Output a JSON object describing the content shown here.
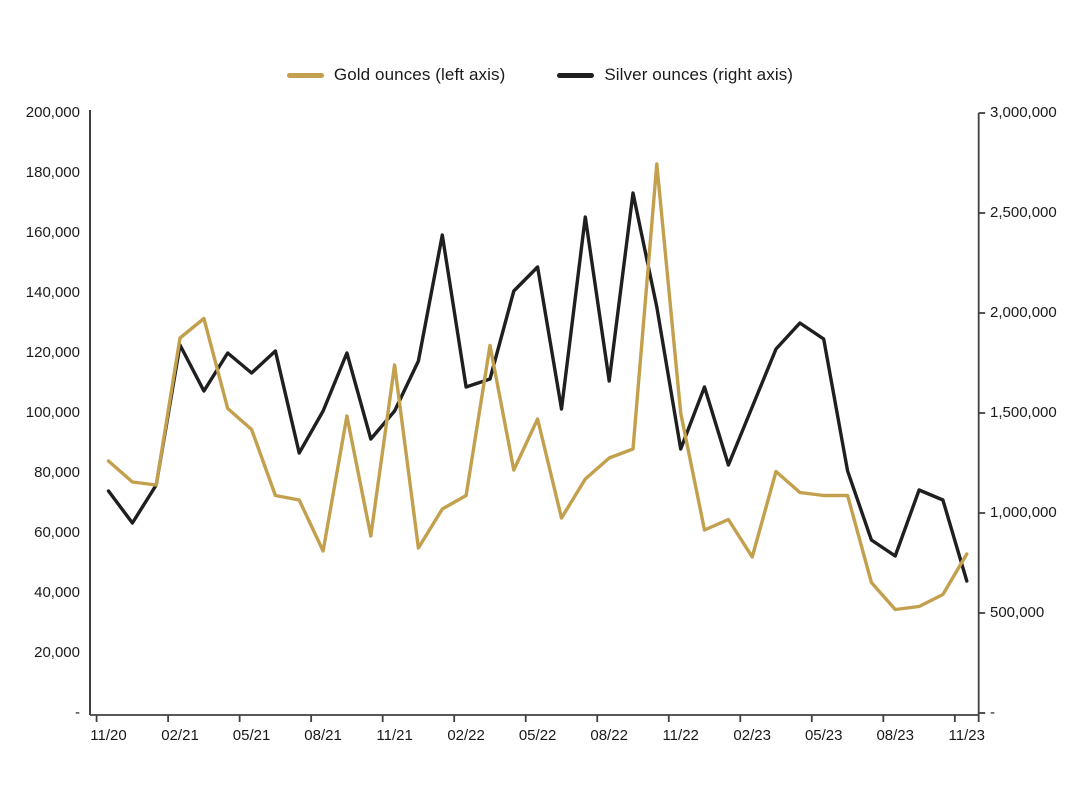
{
  "legend": [
    {
      "label": "Gold ounces (left axis)",
      "color": "#c2a04d"
    },
    {
      "label": "Silver ounces (right axis)",
      "color": "#1f1f1f"
    }
  ],
  "axis_color": "#404040",
  "text_color": "#1a1a1a",
  "chart_data": {
    "type": "line",
    "x": [
      "11/20",
      "12/20",
      "01/21",
      "02/21",
      "03/21",
      "04/21",
      "05/21",
      "06/21",
      "07/21",
      "08/21",
      "09/21",
      "10/21",
      "11/21",
      "12/21",
      "01/22",
      "02/22",
      "03/22",
      "04/22",
      "05/22",
      "06/22",
      "07/22",
      "08/22",
      "09/22",
      "10/22",
      "11/22",
      "12/22",
      "01/23",
      "02/23",
      "03/23",
      "04/23",
      "05/23",
      "06/23",
      "07/23",
      "08/23",
      "09/23",
      "10/23",
      "11/23"
    ],
    "x_tick_labels": [
      "11/20",
      "02/21",
      "05/21",
      "08/21",
      "11/21",
      "02/22",
      "05/22",
      "08/22",
      "11/22",
      "02/23",
      "05/23",
      "08/23",
      "11/23"
    ],
    "series": [
      {
        "name": "Gold ounces (left axis)",
        "axis": "left",
        "color": "#c2a04d",
        "values": [
          84000,
          77000,
          76000,
          125000,
          131500,
          101500,
          94500,
          72500,
          71000,
          54000,
          99000,
          59000,
          116000,
          55000,
          68000,
          72500,
          122500,
          81000,
          98000,
          65000,
          78000,
          85000,
          88000,
          183000,
          100000,
          61000,
          64500,
          52000,
          80500,
          73500,
          72500,
          72500,
          43500,
          34500,
          35500,
          39500,
          53000
        ]
      },
      {
        "name": "Silver ounces (right axis)",
        "axis": "right",
        "color": "#1f1f1f",
        "values": [
          1110000,
          950000,
          1140000,
          1840000,
          1610000,
          1800000,
          1700000,
          1810000,
          1300000,
          1510000,
          1800000,
          1370000,
          1510000,
          1760000,
          2390000,
          1630000,
          1670000,
          2110000,
          2230000,
          1520000,
          2480000,
          1660000,
          2600000,
          2030000,
          1320000,
          1630000,
          1240000,
          1530000,
          1820000,
          1950000,
          1870000,
          1210000,
          865000,
          785000,
          1115000,
          1065000,
          660000
        ]
      }
    ],
    "left_axis": {
      "min": 0,
      "max": 200000,
      "tick_labels": [
        "200,000",
        "180,000",
        "160,000",
        "140,000",
        "120,000",
        "100,000",
        "80,000",
        "60,000",
        "40,000",
        "20,000",
        "-"
      ]
    },
    "right_axis": {
      "min": 0,
      "max": 3000000,
      "tick_labels": [
        "3,000,000",
        "2,500,000",
        "2,000,000",
        "1,500,000",
        "1,000,000",
        "500,000",
        "-"
      ]
    },
    "grid": false,
    "legend_position": "top-center"
  }
}
